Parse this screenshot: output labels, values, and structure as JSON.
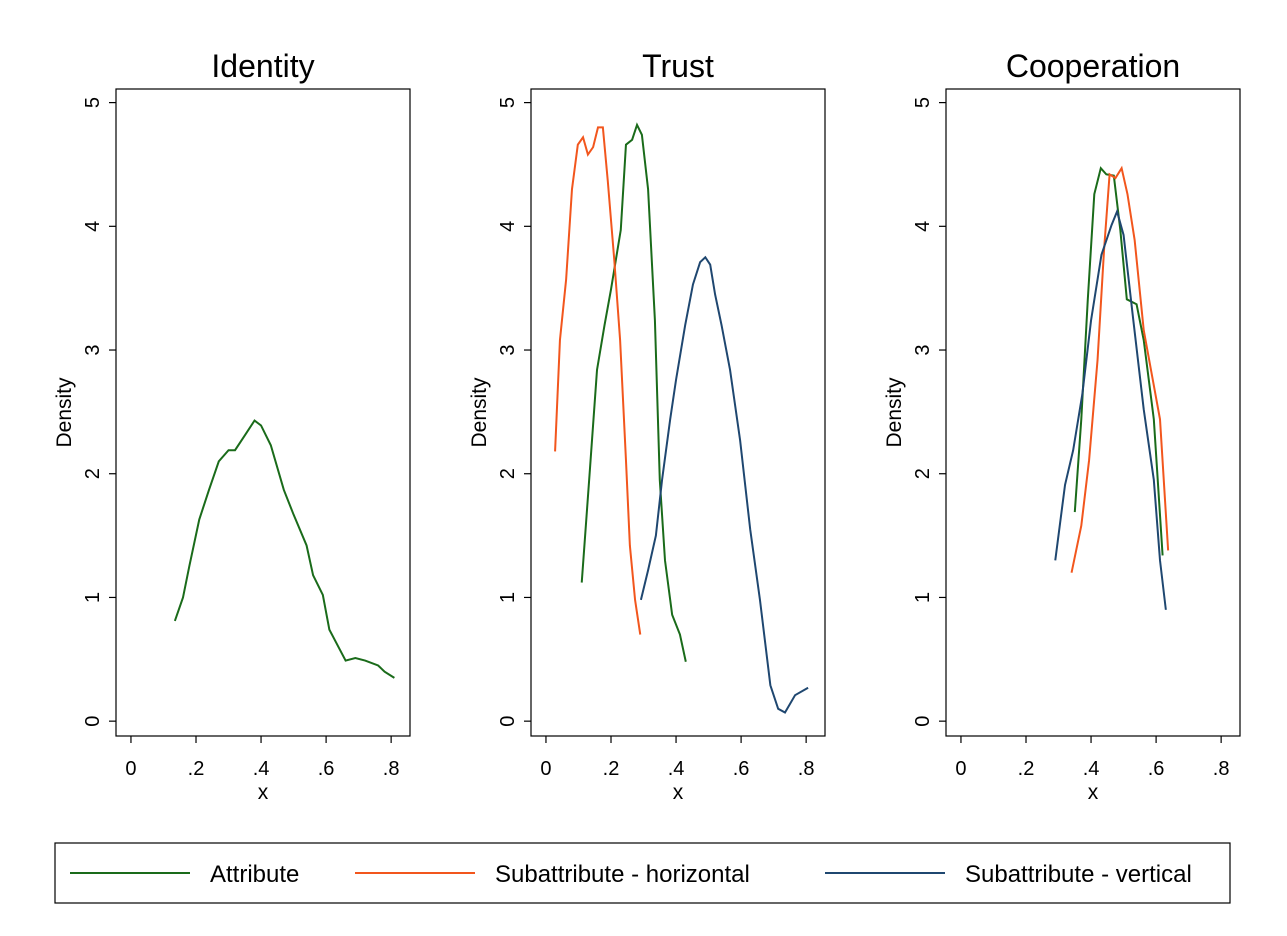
{
  "chart_data": [
    {
      "type": "line",
      "title": "Identity",
      "xlabel": "x",
      "ylabel": "Density",
      "xlim": [
        -0.046,
        0.858
      ],
      "ylim": [
        -0.12,
        5.11
      ],
      "xticks": [
        0,
        {
          "value": 0.2,
          "label": ".2"
        },
        {
          "value": 0.4,
          "label": ".4"
        },
        {
          "value": 0.6,
          "label": ".6"
        },
        {
          "value": 0.8,
          "label": ".8"
        }
      ],
      "yticks": [
        0,
        1,
        2,
        3,
        4,
        5
      ],
      "series": [
        {
          "color": "#1a6b1a",
          "x": [
            0.135,
            0.16,
            0.18,
            0.21,
            0.24,
            0.27,
            0.3,
            0.32,
            0.35,
            0.38,
            0.4,
            0.43,
            0.47,
            0.5,
            0.54,
            0.56,
            0.59,
            0.61,
            0.64,
            0.66,
            0.69,
            0.72,
            0.76,
            0.78,
            0.81
          ],
          "values": [
            0.81,
            1.0,
            1.26,
            1.63,
            1.87,
            2.1,
            2.19,
            2.19,
            2.31,
            2.43,
            2.39,
            2.23,
            1.87,
            1.67,
            1.42,
            1.18,
            1.02,
            0.74,
            0.59,
            0.49,
            0.51,
            0.49,
            0.45,
            0.4,
            0.35
          ]
        }
      ]
    },
    {
      "type": "line",
      "title": "Trust",
      "xlabel": "x",
      "ylabel": "Density",
      "xlim": [
        -0.046,
        0.858
      ],
      "ylim": [
        -0.12,
        5.11
      ],
      "xticks": [
        0,
        {
          "value": 0.2,
          "label": ".2"
        },
        {
          "value": 0.4,
          "label": ".4"
        },
        {
          "value": 0.6,
          "label": ".6"
        },
        {
          "value": 0.8,
          "label": ".8"
        }
      ],
      "yticks": [
        0,
        1,
        2,
        3,
        4,
        5
      ],
      "series": [
        {
          "name": "Attribute",
          "color": "#1a6b1a",
          "x": [
            0.11,
            0.135,
            0.157,
            0.18,
            0.2,
            0.23,
            0.246,
            0.265,
            0.28,
            0.295,
            0.314,
            0.335,
            0.35,
            0.366,
            0.388,
            0.412,
            0.43
          ],
          "values": [
            1.12,
            2.03,
            2.84,
            3.2,
            3.49,
            3.97,
            4.66,
            4.7,
            4.82,
            4.74,
            4.3,
            3.24,
            1.95,
            1.3,
            0.86,
            0.7,
            0.48
          ]
        },
        {
          "name": "Subattribute - horizontal",
          "color": "#f2561d",
          "x": [
            0.028,
            0.043,
            0.062,
            0.08,
            0.098,
            0.114,
            0.129,
            0.145,
            0.16,
            0.175,
            0.19,
            0.21,
            0.228,
            0.246,
            0.258,
            0.274,
            0.29
          ],
          "values": [
            2.18,
            3.08,
            3.57,
            4.3,
            4.66,
            4.72,
            4.58,
            4.64,
            4.8,
            4.8,
            4.37,
            3.73,
            3.08,
            2.11,
            1.42,
            0.98,
            0.7
          ]
        },
        {
          "name": "Subattribute - vertical",
          "color": "#1f4770",
          "x": [
            0.292,
            0.314,
            0.338,
            0.357,
            0.382,
            0.4,
            0.428,
            0.452,
            0.474,
            0.49,
            0.505,
            0.52,
            0.54,
            0.566,
            0.597,
            0.628,
            0.658,
            0.69,
            0.714,
            0.735,
            0.766,
            0.806
          ],
          "values": [
            0.98,
            1.22,
            1.5,
            1.95,
            2.44,
            2.76,
            3.2,
            3.53,
            3.71,
            3.75,
            3.69,
            3.45,
            3.2,
            2.84,
            2.27,
            1.55,
            0.98,
            0.29,
            0.1,
            0.07,
            0.21,
            0.27
          ]
        }
      ]
    },
    {
      "type": "line",
      "title": "Cooperation",
      "xlabel": "x",
      "ylabel": "Density",
      "xlim": [
        -0.046,
        0.858
      ],
      "ylim": [
        -0.12,
        5.11
      ],
      "xticks": [
        0,
        {
          "value": 0.2,
          "label": ".2"
        },
        {
          "value": 0.4,
          "label": ".4"
        },
        {
          "value": 0.6,
          "label": ".6"
        },
        {
          "value": 0.8,
          "label": ".8"
        }
      ],
      "yticks": [
        0,
        1,
        2,
        3,
        4,
        5
      ],
      "series": [
        {
          "color": "#1a6b1a",
          "x": [
            0.35,
            0.37,
            0.39,
            0.41,
            0.43,
            0.447,
            0.47,
            0.49,
            0.51,
            0.54,
            0.562,
            0.593,
            0.62
          ],
          "values": [
            1.69,
            2.44,
            3.41,
            4.26,
            4.47,
            4.42,
            4.41,
            3.97,
            3.41,
            3.37,
            3.08,
            2.44,
            1.34
          ]
        },
        {
          "color": "#f2561d",
          "x": [
            0.34,
            0.37,
            0.394,
            0.42,
            0.44,
            0.457,
            0.475,
            0.494,
            0.512,
            0.534,
            0.562,
            0.587,
            0.612,
            0.637
          ],
          "values": [
            1.2,
            1.58,
            2.11,
            2.92,
            3.81,
            4.42,
            4.39,
            4.47,
            4.26,
            3.89,
            3.16,
            2.8,
            2.44,
            1.38
          ]
        },
        {
          "color": "#1f4770",
          "x": [
            0.29,
            0.32,
            0.345,
            0.373,
            0.4,
            0.432,
            0.463,
            0.48,
            0.5,
            0.53,
            0.562,
            0.593,
            0.612,
            0.63
          ],
          "values": [
            1.3,
            1.91,
            2.19,
            2.64,
            3.24,
            3.77,
            4.01,
            4.12,
            3.93,
            3.24,
            2.52,
            1.95,
            1.3,
            0.9
          ]
        }
      ]
    }
  ]
}
